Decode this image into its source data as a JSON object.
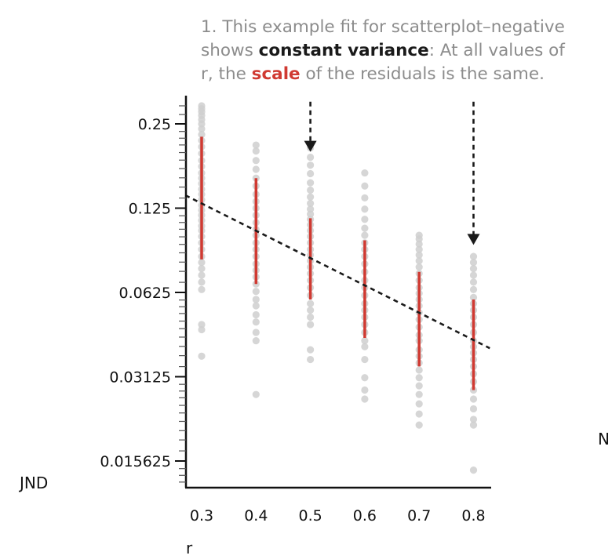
{
  "annotation": {
    "line1": "1. This example fit for scatterplot–negative",
    "line2_prefix": "shows ",
    "line2_bold": "constant variance",
    "line2_suffix": ": At all values of",
    "line3_prefix": "r, the ",
    "line3_red": "scale",
    "line3_suffix": " of the residuals is the same."
  },
  "edge_label": "N",
  "colors": {
    "points": "#cfcfcf",
    "bars": "#d03a32",
    "fit": "#1a1a1a",
    "arrows": "#1a1a1a",
    "axis": "#111111",
    "emphasis_red": "#d03a32"
  },
  "chart_data": {
    "type": "scatter",
    "xlabel": "r",
    "ylabel": "JND",
    "x_ticks": [
      "0.3",
      "0.4",
      "0.5",
      "0.6",
      "0.7",
      "0.8"
    ],
    "y_ticks": [
      "0.25",
      "0.125",
      "0.0625",
      "0.03125",
      "0.015625"
    ],
    "y_scale": "log2",
    "xlim": [
      0.27,
      0.83
    ],
    "ylim": [
      0.0137,
      0.3
    ],
    "points": [
      {
        "x": 0.3,
        "y": [
          0.29,
          0.283,
          0.276,
          0.268,
          0.259,
          0.25,
          0.24,
          0.229,
          0.218,
          0.207,
          0.196,
          0.185,
          0.176,
          0.167,
          0.16,
          0.153,
          0.146,
          0.14,
          0.134,
          0.128,
          0.123,
          0.118,
          0.113,
          0.108,
          0.104,
          0.099,
          0.094,
          0.089,
          0.084,
          0.08,
          0.076,
          0.072,
          0.068,
          0.064,
          0.048,
          0.046,
          0.037
        ]
      },
      {
        "x": 0.4,
        "y": [
          0.21,
          0.2,
          0.185,
          0.172,
          0.16,
          0.15,
          0.14,
          0.132,
          0.125,
          0.118,
          0.111,
          0.105,
          0.1,
          0.094,
          0.089,
          0.084,
          0.079,
          0.075,
          0.071,
          0.067,
          0.063,
          0.059,
          0.056,
          0.052,
          0.049,
          0.045,
          0.042,
          0.027
        ]
      },
      {
        "x": 0.5,
        "y": [
          0.205,
          0.19,
          0.178,
          0.166,
          0.154,
          0.145,
          0.137,
          0.13,
          0.124,
          0.119,
          0.114,
          0.109,
          0.104,
          0.099,
          0.094,
          0.089,
          0.085,
          0.081,
          0.077,
          0.073,
          0.069,
          0.065,
          0.061,
          0.057,
          0.054,
          0.051,
          0.048,
          0.039,
          0.036
        ]
      },
      {
        "x": 0.6,
        "y": [
          0.167,
          0.15,
          0.136,
          0.124,
          0.114,
          0.106,
          0.1,
          0.094,
          0.089,
          0.084,
          0.079,
          0.074,
          0.069,
          0.065,
          0.061,
          0.057,
          0.054,
          0.051,
          0.048,
          0.045,
          0.042,
          0.04,
          0.036,
          0.031,
          0.028,
          0.026
        ]
      },
      {
        "x": 0.7,
        "y": [
          0.1,
          0.097,
          0.093,
          0.089,
          0.085,
          0.081,
          0.077,
          0.073,
          0.069,
          0.065,
          0.062,
          0.059,
          0.056,
          0.053,
          0.05,
          0.047,
          0.044,
          0.042,
          0.039,
          0.037,
          0.035,
          0.033,
          0.031,
          0.029,
          0.027,
          0.025,
          0.023,
          0.021
        ]
      },
      {
        "x": 0.8,
        "y": [
          0.084,
          0.08,
          0.076,
          0.072,
          0.068,
          0.064,
          0.06,
          0.057,
          0.054,
          0.051,
          0.048,
          0.045,
          0.042,
          0.04,
          0.038,
          0.036,
          0.034,
          0.032,
          0.03,
          0.028,
          0.026,
          0.024,
          0.022,
          0.021,
          0.0145
        ]
      }
    ],
    "error_bars": [
      {
        "x": 0.3,
        "low": 0.082,
        "high": 0.225
      },
      {
        "x": 0.4,
        "low": 0.067,
        "high": 0.16
      },
      {
        "x": 0.5,
        "low": 0.059,
        "high": 0.115
      },
      {
        "x": 0.6,
        "low": 0.043,
        "high": 0.096
      },
      {
        "x": 0.7,
        "low": 0.034,
        "high": 0.074
      },
      {
        "x": 0.8,
        "low": 0.028,
        "high": 0.059
      }
    ],
    "fit_line": {
      "x": [
        0.27,
        0.83
      ],
      "y": [
        0.139,
        0.0395
      ]
    },
    "arrows": [
      {
        "x": 0.5,
        "y_from": 0.3,
        "y_to": 0.2
      },
      {
        "x": 0.8,
        "y_from": 0.3,
        "y_to": 0.093
      }
    ]
  }
}
